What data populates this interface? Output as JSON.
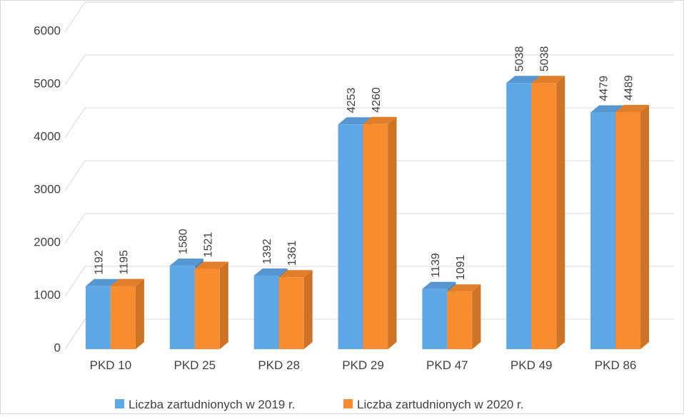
{
  "chart_data": {
    "type": "bar",
    "categories": [
      "PKD 10",
      "PKD 25",
      "PKD 28",
      "PKD 29",
      "PKD 47",
      "PKD 49",
      "PKD 86"
    ],
    "series": [
      {
        "name": "Liczba zartudnionych w 2019 r.",
        "values": [
          1192,
          1580,
          1392,
          4253,
          1139,
          5038,
          4479
        ],
        "color": "#5fa8e8"
      },
      {
        "name": "Liczba zartudnionych w 2020 r.",
        "values": [
          1195,
          1521,
          1361,
          4260,
          1091,
          5038,
          4489
        ],
        "color": "#f98c2e"
      }
    ],
    "ylim": [
      0,
      6000
    ],
    "yticks": [
      0,
      1000,
      2000,
      3000,
      4000,
      5000,
      6000
    ],
    "grid": true,
    "legend_position": "bottom-center",
    "style": "3d-clustered-column",
    "gridline_color": "#d9d9d9",
    "label_color": "#404040"
  }
}
